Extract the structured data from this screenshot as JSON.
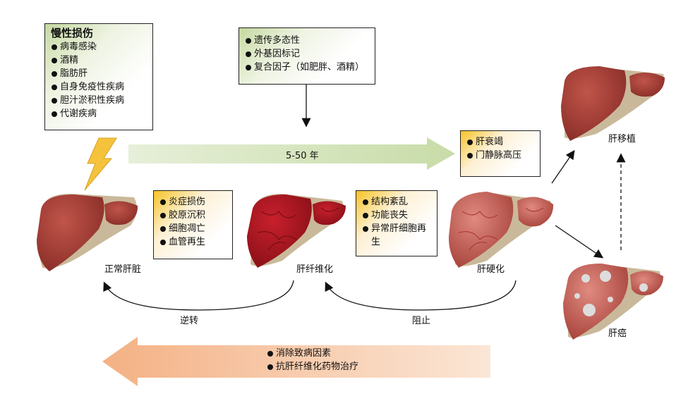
{
  "chronic_injury": {
    "title": "慢性损伤",
    "items": [
      "病毒感染",
      "酒精",
      "脂肪肝",
      "自身免疫性疾病",
      "胆汁淤积性疾病",
      "代谢疾病"
    ]
  },
  "modifiers": {
    "items": [
      "遗传多态性",
      "外基因标记",
      "复合因子（如肥胖、酒精）"
    ]
  },
  "progression": {
    "label": "5-50 年"
  },
  "fibrosis_features": {
    "items": [
      "炎症损伤",
      "胶原沉积",
      "细胞凋亡",
      "血管再生"
    ]
  },
  "cirrhosis_features": {
    "items": [
      "结构紊乱",
      "功能丧失",
      "异常肝细胞再生"
    ]
  },
  "failure_features": {
    "items": [
      "肝衰竭",
      "门静脉高压"
    ]
  },
  "stages": {
    "normal": "正常肝脏",
    "fibrosis": "肝纤维化",
    "cirrhosis": "肝硬化",
    "transplant": "肝移植",
    "cancer": "肝癌"
  },
  "reverse": {
    "label_reverse": "逆转",
    "label_block": "阻止"
  },
  "treatment": {
    "items": [
      "消除致病因素",
      "抗肝纤维化药物治疗"
    ]
  },
  "colors": {
    "green_arrow": "#cfe0b5",
    "orange_arrow": "#f6c9a2",
    "liver": "#a8433a",
    "box_green": "#c5d9a0",
    "box_orange": "#f7c325"
  }
}
